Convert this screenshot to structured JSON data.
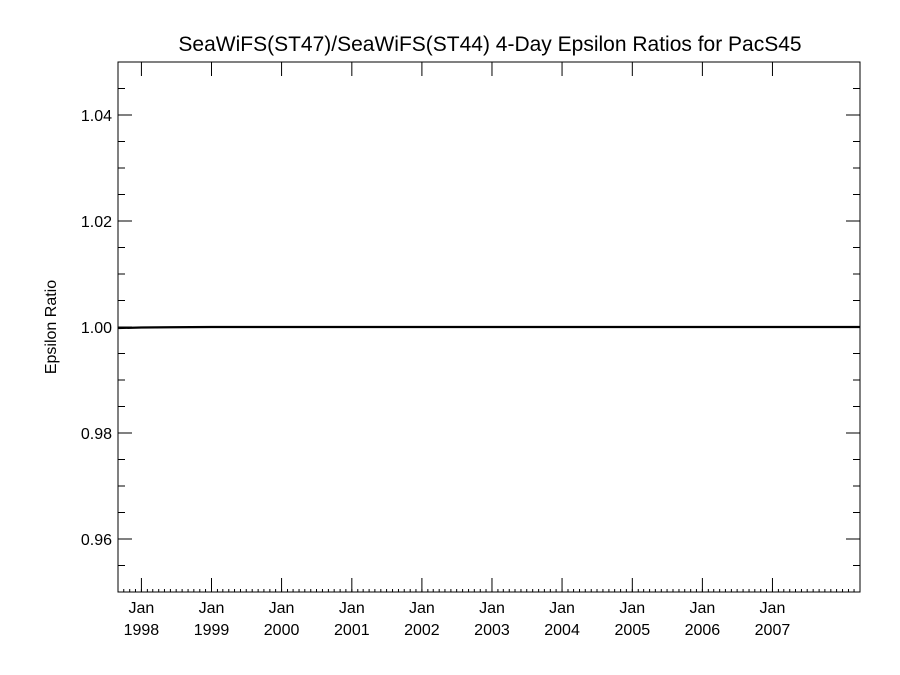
{
  "chart_data": {
    "type": "line",
    "title": "SeaWiFS(ST47)/SeaWiFS(ST44) 4-Day Epsilon Ratios for PacS45",
    "xlabel": "",
    "ylabel": "Epsilon Ratio",
    "xlim": [
      "1997-09-01",
      "2008-04-01"
    ],
    "ylim": [
      0.95,
      1.05
    ],
    "yticks": [
      0.96,
      0.98,
      1.0,
      1.02,
      1.04
    ],
    "ytick_labels": [
      "0.96",
      "0.98",
      "1.00",
      "1.02",
      "1.04"
    ],
    "xticks": [
      {
        "date": "1998-01-01",
        "month": "Jan",
        "year": "1998"
      },
      {
        "date": "1999-01-01",
        "month": "Jan",
        "year": "1999"
      },
      {
        "date": "2000-01-01",
        "month": "Jan",
        "year": "2000"
      },
      {
        "date": "2001-01-01",
        "month": "Jan",
        "year": "2001"
      },
      {
        "date": "2002-01-01",
        "month": "Jan",
        "year": "2002"
      },
      {
        "date": "2003-01-01",
        "month": "Jan",
        "year": "2003"
      },
      {
        "date": "2004-01-01",
        "month": "Jan",
        "year": "2004"
      },
      {
        "date": "2005-01-01",
        "month": "Jan",
        "year": "2005"
      },
      {
        "date": "2006-01-01",
        "month": "Jan",
        "year": "2006"
      },
      {
        "date": "2007-01-01",
        "month": "Jan",
        "year": "2007"
      }
    ],
    "grid": false,
    "series": [
      {
        "x": [
          "1997-09-01",
          "1998-01-01",
          "1998-06-01",
          "1999-01-01",
          "2000-01-01",
          "2001-01-01",
          "2002-01-01",
          "2003-01-01",
          "2004-01-01",
          "2005-01-01",
          "2006-01-01",
          "2007-01-01",
          "2008-04-01"
        ],
        "values": [
          0.9998,
          0.9999,
          0.99995,
          1.0,
          1.0,
          1.0,
          1.0,
          1.0,
          1.0,
          1.0,
          1.0,
          1.0,
          1.0
        ],
        "color": "#000000"
      }
    ]
  }
}
